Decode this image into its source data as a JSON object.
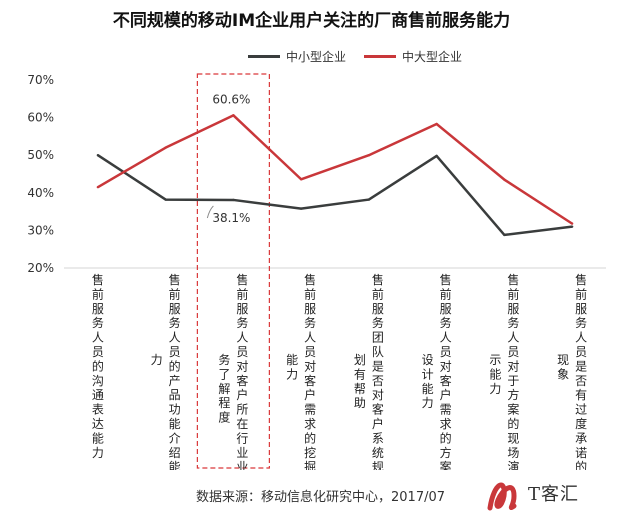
{
  "chart_data": {
    "type": "line",
    "title": "不同规模的移动IM企业用户关注的厂商售前服务能力",
    "categories": [
      "售前服务人员的沟通表达能力",
      "售前服务人员的产品功能介绍能力",
      "售前服务人员对客户所在行业业务了解程度",
      "售前服务人员对客户需求的挖掘能力",
      "售前服务团队是否对客户系统规划有帮助",
      "售前服务人员对客户需求的方案设计能力",
      "售前服务人员对于方案的现场演示能力",
      "售前服务人员是否有过度承诺的现象"
    ],
    "category_lines": [
      [
        "售前服务人员的沟通表达能力"
      ],
      [
        "售前服务人员的产品功能介绍能",
        "力"
      ],
      [
        "售前服务人员对客户所在行业业",
        "务了解程度"
      ],
      [
        "售前服务人员对客户需求的挖掘",
        "能力"
      ],
      [
        "售前服务团队是否对客户系统规",
        "划有帮助"
      ],
      [
        "售前服务人员对客户需求的方案",
        "设计能力"
      ],
      [
        "售前服务人员对于方案的现场演",
        "示能力"
      ],
      [
        "售前服务人员是否有过度承诺的",
        "现象"
      ]
    ],
    "series": [
      {
        "name": "中小型企业",
        "color": "#3a3d3d",
        "values": [
          50.0,
          38.2,
          38.1,
          35.8,
          38.2,
          49.8,
          28.8,
          31.0
        ]
      },
      {
        "name": "中大型企业",
        "color": "#c9373a",
        "values": [
          41.5,
          52.0,
          60.6,
          43.6,
          50.0,
          58.3,
          43.5,
          31.8
        ]
      }
    ],
    "yticks": [
      "70%",
      "60%",
      "50%",
      "40%",
      "30%",
      "20%"
    ],
    "ylim": [
      20,
      70
    ],
    "data_labels": [
      "60.6%",
      "38.1%"
    ],
    "highlight_category_index": 2,
    "highlight_color": "#d9383a"
  },
  "footer": {
    "source": "数据来源：移动信息化研究中心，2017/07",
    "watermark_text": "T客汇"
  }
}
